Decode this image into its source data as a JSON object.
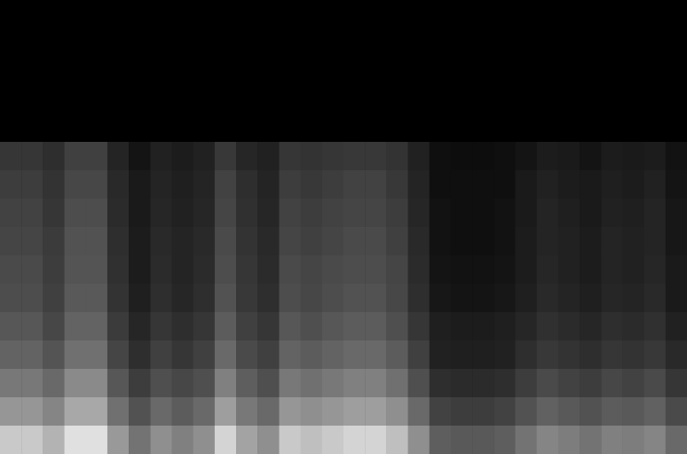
{
  "chart_data": {
    "type": "heatmap",
    "tick_labels": false,
    "zlim": [
      0,
      100
    ],
    "cells": [
      [
        0,
        0,
        0,
        0,
        0,
        0,
        0,
        0,
        0,
        0,
        0,
        0,
        0,
        0,
        0,
        0,
        0,
        0,
        0,
        0,
        0,
        0,
        0,
        0,
        0,
        0,
        0,
        0,
        0,
        0,
        0,
        0
      ],
      [
        0,
        0,
        0,
        0,
        0,
        0,
        0,
        0,
        0,
        0,
        0,
        0,
        0,
        0,
        0,
        0,
        0,
        0,
        0,
        0,
        0,
        0,
        0,
        0,
        0,
        0,
        0,
        0,
        0,
        0,
        0,
        0
      ],
      [
        0,
        0,
        0,
        0,
        0,
        0,
        0,
        0,
        0,
        0,
        0,
        0,
        0,
        0,
        0,
        0,
        0,
        0,
        0,
        0,
        0,
        0,
        0,
        0,
        0,
        0,
        0,
        0,
        0,
        0,
        0,
        0
      ],
      [
        0,
        0,
        0,
        0,
        0,
        0,
        0,
        0,
        0,
        0,
        0,
        0,
        0,
        0,
        0,
        0,
        0,
        0,
        0,
        0,
        0,
        0,
        0,
        0,
        0,
        0,
        0,
        0,
        0,
        0,
        0,
        0
      ],
      [
        0,
        0,
        0,
        0,
        0,
        0,
        0,
        0,
        0,
        0,
        0,
        0,
        0,
        0,
        0,
        0,
        0,
        0,
        0,
        0,
        0,
        0,
        0,
        0,
        0,
        0,
        0,
        0,
        0,
        0,
        0,
        0
      ],
      [
        21,
        21,
        18,
        25,
        25,
        14,
        8,
        13,
        11,
        13,
        22,
        15,
        13,
        21,
        20,
        21,
        22,
        22,
        20,
        13,
        6,
        5,
        5,
        6,
        8,
        11,
        10,
        8,
        11,
        10,
        11,
        7
      ],
      [
        24,
        24,
        20,
        28,
        28,
        16,
        10,
        14,
        12,
        14,
        26,
        18,
        14,
        24,
        22,
        24,
        26,
        26,
        22,
        14,
        6,
        6,
        6,
        6,
        10,
        13,
        11,
        10,
        12,
        11,
        13,
        8
      ],
      [
        26,
        26,
        21,
        30,
        30,
        17,
        10,
        15,
        13,
        15,
        27,
        19,
        15,
        26,
        24,
        26,
        27,
        27,
        24,
        15,
        7,
        6,
        6,
        7,
        10,
        14,
        12,
        10,
        13,
        12,
        14,
        9
      ],
      [
        27,
        27,
        23,
        32,
        32,
        18,
        11,
        16,
        14,
        16,
        29,
        20,
        16,
        27,
        25,
        27,
        29,
        29,
        25,
        16,
        7,
        6,
        6,
        7,
        11,
        14,
        13,
        11,
        14,
        13,
        14,
        9
      ],
      [
        29,
        29,
        24,
        33,
        33,
        19,
        11,
        17,
        14,
        17,
        30,
        21,
        17,
        29,
        27,
        29,
        30,
        30,
        27,
        17,
        8,
        7,
        7,
        8,
        11,
        15,
        13,
        11,
        14,
        13,
        15,
        10
      ],
      [
        30,
        30,
        25,
        35,
        35,
        20,
        12,
        18,
        15,
        18,
        32,
        22,
        18,
        30,
        28,
        30,
        32,
        32,
        28,
        18,
        9,
        8,
        8,
        9,
        12,
        16,
        14,
        12,
        15,
        14,
        16,
        10
      ],
      [
        34,
        34,
        28,
        39,
        39,
        23,
        15,
        21,
        18,
        21,
        36,
        25,
        21,
        34,
        31,
        34,
        36,
        36,
        31,
        21,
        12,
        11,
        11,
        12,
        15,
        19,
        17,
        15,
        18,
        17,
        19,
        13
      ],
      [
        39,
        39,
        33,
        44,
        44,
        27,
        18,
        25,
        21,
        25,
        41,
        29,
        25,
        39,
        36,
        39,
        41,
        41,
        36,
        25,
        13,
        12,
        12,
        13,
        18,
        22,
        20,
        18,
        21,
        20,
        22,
        16
      ],
      [
        47,
        47,
        41,
        54,
        54,
        34,
        24,
        31,
        28,
        31,
        50,
        37,
        31,
        47,
        44,
        47,
        50,
        50,
        44,
        31,
        18,
        17,
        17,
        18,
        24,
        29,
        26,
        24,
        28,
        26,
        29,
        21
      ],
      [
        59,
        59,
        52,
        66,
        66,
        44,
        32,
        41,
        36,
        41,
        62,
        47,
        41,
        59,
        56,
        59,
        62,
        62,
        56,
        41,
        26,
        24,
        24,
        26,
        32,
        38,
        35,
        32,
        36,
        35,
        38,
        29
      ],
      [
        79,
        79,
        70,
        88,
        88,
        60,
        45,
        56,
        50,
        56,
        83,
        64,
        56,
        79,
        75,
        79,
        83,
        83,
        75,
        56,
        37,
        35,
        35,
        37,
        45,
        52,
        49,
        45,
        50,
        49,
        52,
        41
      ]
    ]
  }
}
